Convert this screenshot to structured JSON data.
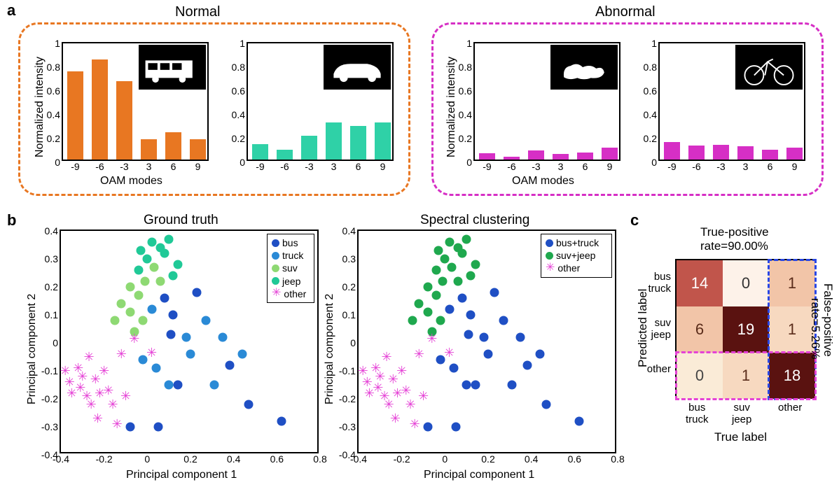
{
  "labels": {
    "a": "a",
    "b": "b",
    "c": "c",
    "normal": "Normal",
    "abnormal": "Abnormal",
    "oam": "OAM modes",
    "ninten": "Normalized intensity",
    "pc1": "Principal component 1",
    "pc2": "Principal component 2",
    "gt": "Ground truth",
    "sc": "Spectral clustering",
    "tpr": "True-positive",
    "tpr2": "rate=90.00%",
    "fpr": "False-positive",
    "fpr2": "rate=5.26%",
    "pred": "Predicted label",
    "true": "True label",
    "bus": "bus",
    "truck": "truck",
    "suv": "suv",
    "jeep": "jeep",
    "other": "other",
    "bustruck": "bus+truck",
    "suvjeep": "suv+jeep"
  },
  "colors": {
    "orange": "#e87722",
    "magenta": "#d62fc5",
    "teal": "#2fd1a7",
    "blue1": "#1f4fc4",
    "blue2": "#2a8ad6",
    "green1": "#8ed973",
    "green2": "#20c997",
    "greencluster": "#1fa84e",
    "star": "#e542d6",
    "conf_dark": "#5a1210",
    "conf_mid": "#c1554b",
    "conf_light1": "#f2c5a8",
    "conf_light2": "#faebd7",
    "conf_light3": "#fdf2e9",
    "conf_light4": "#f7d9c0",
    "dash_blue": "#2846e6",
    "dash_mag": "#e542d6"
  },
  "panelA": {
    "xticks": [
      "-9",
      "-6",
      "-3",
      "3",
      "6",
      "9"
    ],
    "yticks": [
      0,
      0.2,
      0.4,
      0.6,
      0.8,
      1
    ],
    "ylim": 1,
    "charts": [
      {
        "color": "#e87722",
        "values": [
          0.74,
          0.84,
          0.66,
          0.17,
          0.23,
          0.17
        ],
        "inset": "bus"
      },
      {
        "color": "#2fd1a7",
        "values": [
          0.13,
          0.085,
          0.2,
          0.31,
          0.28,
          0.31
        ],
        "inset": "car"
      },
      {
        "color": "#d62fc5",
        "values": [
          0.055,
          0.025,
          0.075,
          0.045,
          0.06,
          0.1
        ],
        "inset": "dog"
      },
      {
        "color": "#d62fc5",
        "values": [
          0.145,
          0.12,
          0.125,
          0.11,
          0.085,
          0.1
        ],
        "inset": "bike"
      }
    ]
  },
  "panelB": {
    "xticks": [
      -0.4,
      -0.2,
      0,
      0.2,
      0.4,
      0.6,
      0.8
    ],
    "yticks": [
      -0.4,
      -0.3,
      -0.2,
      -0.1,
      0,
      0.1,
      0.2,
      0.3,
      0.4
    ],
    "xlim": [
      -0.4,
      0.8
    ],
    "ylim": [
      -0.4,
      0.4
    ],
    "ground_truth": {
      "legend": [
        {
          "sym": "dot",
          "color": "#1f4fc4",
          "label": "bus"
        },
        {
          "sym": "dot",
          "color": "#2a8ad6",
          "label": "truck"
        },
        {
          "sym": "dot",
          "color": "#8ed973",
          "label": "suv"
        },
        {
          "sym": "dot",
          "color": "#20c997",
          "label": "jeep"
        },
        {
          "sym": "star",
          "color": "#e542d6",
          "label": "other"
        }
      ],
      "points": [
        {
          "x": -0.08,
          "y": -0.3,
          "c": "#1f4fc4",
          "k": "d"
        },
        {
          "x": 0.05,
          "y": -0.3,
          "c": "#1f4fc4",
          "k": "d"
        },
        {
          "x": 0.14,
          "y": -0.15,
          "c": "#1f4fc4",
          "k": "d"
        },
        {
          "x": 0.11,
          "y": 0.03,
          "c": "#1f4fc4",
          "k": "d"
        },
        {
          "x": 0.23,
          "y": 0.18,
          "c": "#1f4fc4",
          "k": "d"
        },
        {
          "x": 0.08,
          "y": 0.16,
          "c": "#1f4fc4",
          "k": "d"
        },
        {
          "x": 0.12,
          "y": 0.1,
          "c": "#1f4fc4",
          "k": "d"
        },
        {
          "x": 0.38,
          "y": -0.08,
          "c": "#1f4fc4",
          "k": "d"
        },
        {
          "x": 0.47,
          "y": -0.22,
          "c": "#1f4fc4",
          "k": "d"
        },
        {
          "x": 0.62,
          "y": -0.28,
          "c": "#1f4fc4",
          "k": "d"
        },
        {
          "x": 0.1,
          "y": -0.15,
          "c": "#2a8ad6",
          "k": "d"
        },
        {
          "x": 0.04,
          "y": -0.09,
          "c": "#2a8ad6",
          "k": "d"
        },
        {
          "x": 0.2,
          "y": -0.04,
          "c": "#2a8ad6",
          "k": "d"
        },
        {
          "x": 0.31,
          "y": -0.15,
          "c": "#2a8ad6",
          "k": "d"
        },
        {
          "x": 0.18,
          "y": 0.02,
          "c": "#2a8ad6",
          "k": "d"
        },
        {
          "x": 0.27,
          "y": 0.08,
          "c": "#2a8ad6",
          "k": "d"
        },
        {
          "x": 0.35,
          "y": 0.02,
          "c": "#2a8ad6",
          "k": "d"
        },
        {
          "x": 0.44,
          "y": -0.04,
          "c": "#2a8ad6",
          "k": "d"
        },
        {
          "x": 0.02,
          "y": 0.12,
          "c": "#2a8ad6",
          "k": "d"
        },
        {
          "x": -0.02,
          "y": -0.06,
          "c": "#2a8ad6",
          "k": "d"
        },
        {
          "x": -0.12,
          "y": 0.14,
          "c": "#8ed973",
          "k": "d"
        },
        {
          "x": -0.08,
          "y": 0.11,
          "c": "#8ed973",
          "k": "d"
        },
        {
          "x": -0.04,
          "y": 0.17,
          "c": "#8ed973",
          "k": "d"
        },
        {
          "x": -0.08,
          "y": 0.2,
          "c": "#8ed973",
          "k": "d"
        },
        {
          "x": -0.01,
          "y": 0.22,
          "c": "#8ed973",
          "k": "d"
        },
        {
          "x": 0.03,
          "y": 0.27,
          "c": "#8ed973",
          "k": "d"
        },
        {
          "x": -0.06,
          "y": 0.04,
          "c": "#8ed973",
          "k": "d"
        },
        {
          "x": -0.15,
          "y": 0.08,
          "c": "#8ed973",
          "k": "d"
        },
        {
          "x": -0.02,
          "y": 0.08,
          "c": "#8ed973",
          "k": "d"
        },
        {
          "x": 0.06,
          "y": 0.22,
          "c": "#8ed973",
          "k": "d"
        },
        {
          "x": 0.0,
          "y": 0.3,
          "c": "#20c997",
          "k": "d"
        },
        {
          "x": 0.08,
          "y": 0.32,
          "c": "#20c997",
          "k": "d"
        },
        {
          "x": 0.1,
          "y": 0.37,
          "c": "#20c997",
          "k": "d"
        },
        {
          "x": 0.14,
          "y": 0.28,
          "c": "#20c997",
          "k": "d"
        },
        {
          "x": 0.06,
          "y": 0.34,
          "c": "#20c997",
          "k": "d"
        },
        {
          "x": -0.03,
          "y": 0.33,
          "c": "#20c997",
          "k": "d"
        },
        {
          "x": -0.04,
          "y": 0.26,
          "c": "#20c997",
          "k": "d"
        },
        {
          "x": 0.02,
          "y": 0.36,
          "c": "#20c997",
          "k": "d"
        },
        {
          "x": 0.12,
          "y": 0.24,
          "c": "#20c997",
          "k": "d"
        },
        {
          "x": -0.38,
          "y": -0.1,
          "c": "#e542d6",
          "k": "s"
        },
        {
          "x": -0.36,
          "y": -0.14,
          "c": "#e542d6",
          "k": "s"
        },
        {
          "x": -0.35,
          "y": -0.18,
          "c": "#e542d6",
          "k": "s"
        },
        {
          "x": -0.32,
          "y": -0.09,
          "c": "#e542d6",
          "k": "s"
        },
        {
          "x": -0.31,
          "y": -0.16,
          "c": "#e542d6",
          "k": "s"
        },
        {
          "x": -0.3,
          "y": -0.12,
          "c": "#e542d6",
          "k": "s"
        },
        {
          "x": -0.28,
          "y": -0.19,
          "c": "#e542d6",
          "k": "s"
        },
        {
          "x": -0.27,
          "y": -0.05,
          "c": "#e542d6",
          "k": "s"
        },
        {
          "x": -0.26,
          "y": -0.22,
          "c": "#e542d6",
          "k": "s"
        },
        {
          "x": -0.24,
          "y": -0.13,
          "c": "#e542d6",
          "k": "s"
        },
        {
          "x": -0.23,
          "y": -0.27,
          "c": "#e542d6",
          "k": "s"
        },
        {
          "x": -0.22,
          "y": -0.18,
          "c": "#e542d6",
          "k": "s"
        },
        {
          "x": -0.2,
          "y": -0.1,
          "c": "#e542d6",
          "k": "s"
        },
        {
          "x": -0.18,
          "y": -0.17,
          "c": "#e542d6",
          "k": "s"
        },
        {
          "x": -0.16,
          "y": -0.22,
          "c": "#e542d6",
          "k": "s"
        },
        {
          "x": -0.14,
          "y": -0.29,
          "c": "#e542d6",
          "k": "s"
        },
        {
          "x": -0.12,
          "y": -0.04,
          "c": "#e542d6",
          "k": "s"
        },
        {
          "x": -0.1,
          "y": -0.19,
          "c": "#e542d6",
          "k": "s"
        },
        {
          "x": -0.06,
          "y": 0.015,
          "c": "#e542d6",
          "k": "s"
        },
        {
          "x": 0.02,
          "y": -0.035,
          "c": "#e542d6",
          "k": "s"
        }
      ]
    },
    "spectral": {
      "legend": [
        {
          "sym": "dot",
          "color": "#1f4fc4",
          "label": "bus+truck"
        },
        {
          "sym": "dot",
          "color": "#1fa84e",
          "label": "suv+jeep"
        },
        {
          "sym": "star",
          "color": "#e542d6",
          "label": "other"
        }
      ]
    }
  },
  "panelC": {
    "rows": [
      "bus\ntruck",
      "suv\njeep",
      "other"
    ],
    "cols": [
      "bus\ntruck",
      "suv\njeep",
      "other"
    ],
    "cells": [
      [
        {
          "v": "14",
          "bg": "#c1554b",
          "fg": "#fff"
        },
        {
          "v": "0",
          "bg": "#fdf2e9",
          "fg": "#333"
        },
        {
          "v": "1",
          "bg": "#f2c5a8",
          "fg": "#5a2c1a"
        }
      ],
      [
        {
          "v": "6",
          "bg": "#f2c5a8",
          "fg": "#5a2c1a"
        },
        {
          "v": "19",
          "bg": "#5a1210",
          "fg": "#fff"
        },
        {
          "v": "1",
          "bg": "#f7d9c0",
          "fg": "#5a2c1a"
        }
      ],
      [
        {
          "v": "0",
          "bg": "#faebd7",
          "fg": "#444"
        },
        {
          "v": "1",
          "bg": "#f7d9c0",
          "fg": "#5a2c1a"
        },
        {
          "v": "18",
          "bg": "#5a1210",
          "fg": "#fff"
        }
      ]
    ]
  }
}
